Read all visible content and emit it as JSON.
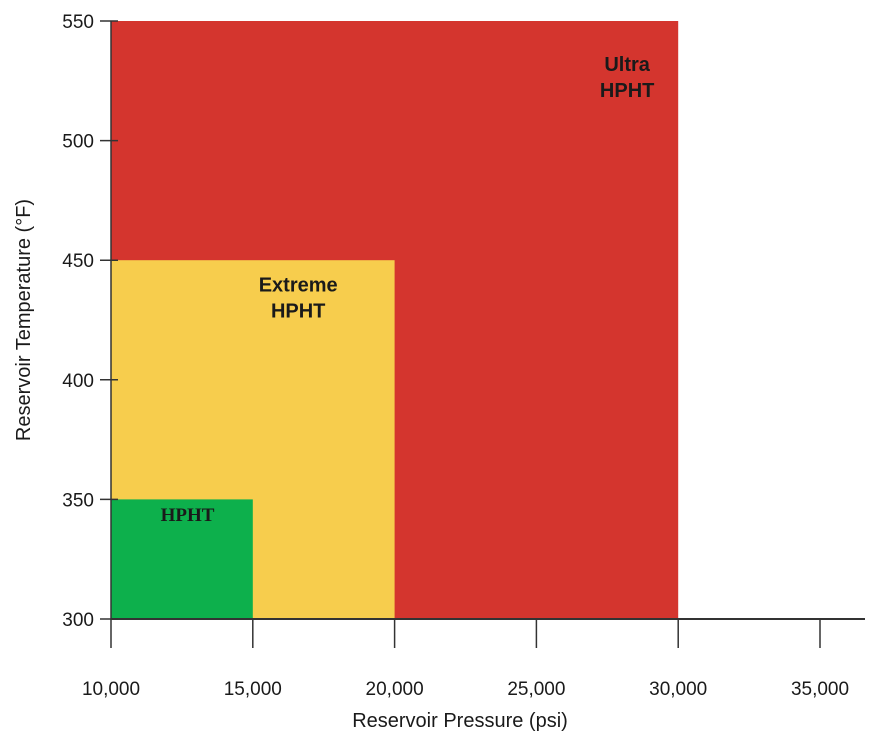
{
  "chart_data": {
    "type": "area",
    "xlabel": "Reservoir Pressure (psi)",
    "ylabel": "Reservoir Temperature (°F)",
    "xlim": [
      10000,
      35000
    ],
    "ylim": [
      300,
      550
    ],
    "x_ticks": [
      10000,
      15000,
      20000,
      25000,
      30000,
      35000
    ],
    "x_tick_labels": [
      "10,000",
      "15,000",
      "20,000",
      "25,000",
      "30,000",
      "35,000"
    ],
    "y_ticks": [
      300,
      350,
      400,
      450,
      500,
      550
    ],
    "y_tick_labels": [
      "300",
      "350",
      "400",
      "450",
      "500",
      "550"
    ],
    "regions": [
      {
        "label_lines": [
          "Ultra",
          "HPHT"
        ],
        "x_range": [
          10000,
          30000
        ],
        "y_range": [
          300,
          550
        ],
        "color": "#d4352e"
      },
      {
        "label_lines": [
          "Extreme",
          "HPHT"
        ],
        "x_range": [
          10000,
          20000
        ],
        "y_range": [
          300,
          450
        ],
        "color": "#f7cd4d"
      },
      {
        "label_lines": [
          "HPHT"
        ],
        "x_range": [
          10000,
          15000
        ],
        "y_range": [
          300,
          350
        ],
        "color": "#0db04c"
      }
    ]
  }
}
